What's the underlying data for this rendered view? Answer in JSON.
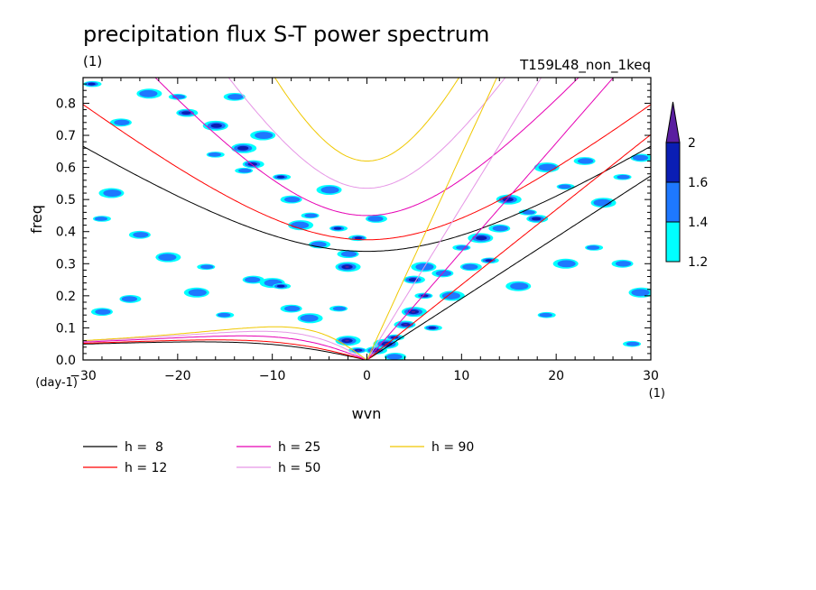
{
  "chart_data": {
    "type": "heatmap",
    "title": "precipitation flux S-T power spectrum",
    "subtitle_left": "(1)",
    "subtitle_right": "T159L48_non_1keq",
    "xlabel": "wvn",
    "ylabel": "freq",
    "xunit": "(1)",
    "yunit": "(day-1)",
    "xlim": [
      -30,
      30
    ],
    "ylim": [
      0,
      0.88
    ],
    "xticks": [
      -30,
      -20,
      -10,
      0,
      10,
      20,
      30
    ],
    "yticks": [
      0.0,
      0.1,
      0.2,
      0.3,
      0.4,
      0.5,
      0.6,
      0.7,
      0.8
    ],
    "grid": false,
    "colorbar": {
      "levels": [
        1.2,
        1.4,
        1.6,
        2
      ],
      "colors": [
        "#00ffff",
        "#1e78ff",
        "#0a1eb4",
        "#5a1ea0"
      ]
    },
    "contour_blobs": [
      {
        "x": -29,
        "y": 0.86,
        "level": 2
      },
      {
        "x": -26,
        "y": 0.74,
        "level": 1
      },
      {
        "x": -23,
        "y": 0.83,
        "level": 1
      },
      {
        "x": -20,
        "y": 0.82,
        "level": 1
      },
      {
        "x": -19,
        "y": 0.77,
        "level": 2
      },
      {
        "x": -16,
        "y": 0.73,
        "level": 2
      },
      {
        "x": -16,
        "y": 0.64,
        "level": 1
      },
      {
        "x": -14,
        "y": 0.82,
        "level": 1
      },
      {
        "x": -13,
        "y": 0.66,
        "level": 2
      },
      {
        "x": -13,
        "y": 0.59,
        "level": 1
      },
      {
        "x": -12,
        "y": 0.61,
        "level": 2
      },
      {
        "x": -11,
        "y": 0.7,
        "level": 1
      },
      {
        "x": -9,
        "y": 0.57,
        "level": 2
      },
      {
        "x": -8,
        "y": 0.5,
        "level": 1
      },
      {
        "x": -7,
        "y": 0.42,
        "level": 1
      },
      {
        "x": -6,
        "y": 0.45,
        "level": 1
      },
      {
        "x": -5,
        "y": 0.36,
        "level": 1
      },
      {
        "x": -4,
        "y": 0.53,
        "level": 1
      },
      {
        "x": -3,
        "y": 0.41,
        "level": 2
      },
      {
        "x": -2,
        "y": 0.33,
        "level": 1
      },
      {
        "x": -2,
        "y": 0.29,
        "level": 3
      },
      {
        "x": -1,
        "y": 0.38,
        "level": 2
      },
      {
        "x": 1,
        "y": 0.44,
        "level": 1
      },
      {
        "x": -27,
        "y": 0.52,
        "level": 1
      },
      {
        "x": -28,
        "y": 0.44,
        "level": 1
      },
      {
        "x": -24,
        "y": 0.39,
        "level": 1
      },
      {
        "x": -21,
        "y": 0.32,
        "level": 1
      },
      {
        "x": -17,
        "y": 0.29,
        "level": 1
      },
      {
        "x": -12,
        "y": 0.25,
        "level": 1
      },
      {
        "x": -10,
        "y": 0.24,
        "level": 1
      },
      {
        "x": -9,
        "y": 0.23,
        "level": 2
      },
      {
        "x": -8,
        "y": 0.16,
        "level": 1
      },
      {
        "x": -6,
        "y": 0.13,
        "level": 1
      },
      {
        "x": -3,
        "y": 0.16,
        "level": 1
      },
      {
        "x": -25,
        "y": 0.19,
        "level": 1
      },
      {
        "x": -18,
        "y": 0.21,
        "level": 1
      },
      {
        "x": -15,
        "y": 0.14,
        "level": 1
      },
      {
        "x": -28,
        "y": 0.15,
        "level": 1
      },
      {
        "x": -2,
        "y": 0.06,
        "level": 3
      },
      {
        "x": -1,
        "y": 0.03,
        "level": 3
      },
      {
        "x": 1,
        "y": 0.03,
        "level": 3
      },
      {
        "x": 2,
        "y": 0.05,
        "level": 3
      },
      {
        "x": 3,
        "y": 0.07,
        "level": 3
      },
      {
        "x": 4,
        "y": 0.11,
        "level": 3
      },
      {
        "x": 5,
        "y": 0.15,
        "level": 3
      },
      {
        "x": 6,
        "y": 0.2,
        "level": 3
      },
      {
        "x": 5,
        "y": 0.25,
        "level": 2
      },
      {
        "x": 6,
        "y": 0.29,
        "level": 1
      },
      {
        "x": 7,
        "y": 0.1,
        "level": 2
      },
      {
        "x": 8,
        "y": 0.27,
        "level": 1
      },
      {
        "x": 9,
        "y": 0.2,
        "level": 1
      },
      {
        "x": 10,
        "y": 0.35,
        "level": 1
      },
      {
        "x": 11,
        "y": 0.29,
        "level": 1
      },
      {
        "x": 12,
        "y": 0.38,
        "level": 2
      },
      {
        "x": 13,
        "y": 0.31,
        "level": 2
      },
      {
        "x": 14,
        "y": 0.41,
        "level": 1
      },
      {
        "x": 15,
        "y": 0.5,
        "level": 2
      },
      {
        "x": 17,
        "y": 0.46,
        "level": 1
      },
      {
        "x": 18,
        "y": 0.44,
        "level": 2
      },
      {
        "x": 19,
        "y": 0.6,
        "level": 1
      },
      {
        "x": 21,
        "y": 0.54,
        "level": 1
      },
      {
        "x": 23,
        "y": 0.62,
        "level": 1
      },
      {
        "x": 25,
        "y": 0.49,
        "level": 1
      },
      {
        "x": 27,
        "y": 0.57,
        "level": 1
      },
      {
        "x": 29,
        "y": 0.63,
        "level": 1
      },
      {
        "x": 21,
        "y": 0.3,
        "level": 1
      },
      {
        "x": 24,
        "y": 0.35,
        "level": 1
      },
      {
        "x": 27,
        "y": 0.3,
        "level": 1
      },
      {
        "x": 29,
        "y": 0.21,
        "level": 1
      },
      {
        "x": 28,
        "y": 0.05,
        "level": 1
      },
      {
        "x": 3,
        "y": 0.01,
        "level": 1
      },
      {
        "x": 16,
        "y": 0.23,
        "level": 1
      },
      {
        "x": 19,
        "y": 0.14,
        "level": 1
      }
    ],
    "series": [
      {
        "name": "h =  8",
        "color": "#000000",
        "ek": 8
      },
      {
        "name": "h = 12",
        "color": "#ff0000",
        "ek": 12
      },
      {
        "name": "h = 25",
        "color": "#e600b4",
        "ek": 25
      },
      {
        "name": "h = 50",
        "color": "#e696e6",
        "ek": 50
      },
      {
        "name": "h = 90",
        "color": "#f0c800",
        "ek": 90
      }
    ],
    "legend_placement": "bottom"
  }
}
